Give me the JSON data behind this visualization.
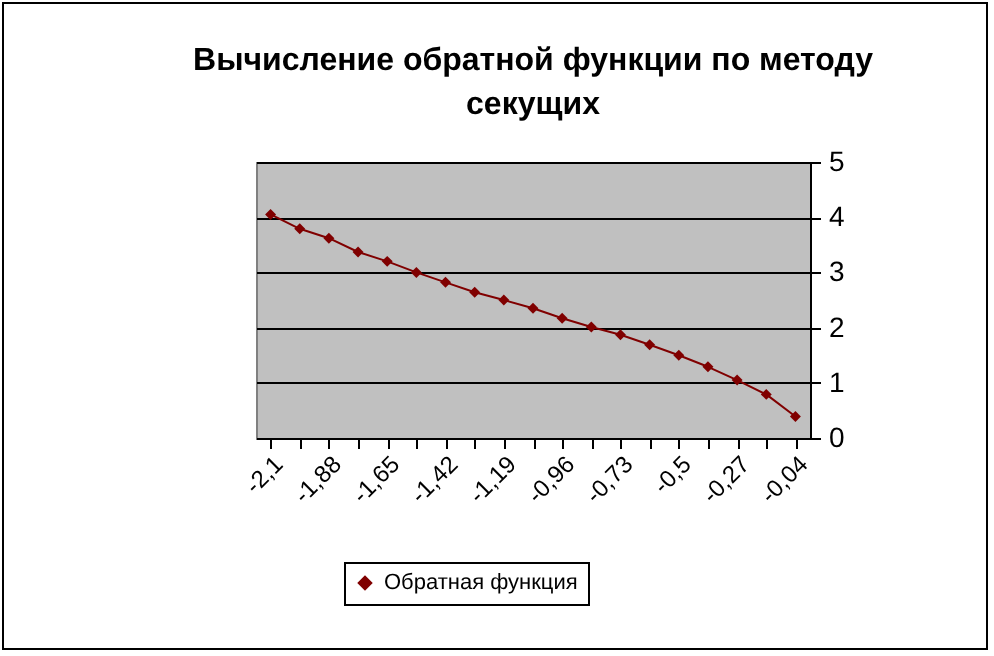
{
  "chart_data": {
    "type": "line",
    "title": "Вычисление обратной функции по методу секущих",
    "categories": [
      "-2,1",
      null,
      "-1,88",
      null,
      "-1,65",
      null,
      "-1,42",
      null,
      "-1,19",
      null,
      "-0,96",
      null,
      "-0,73",
      null,
      "-0,5",
      null,
      "-0,27",
      null,
      "-0,04"
    ],
    "series": [
      {
        "name": "Обратная функция",
        "color": "#800000",
        "values": [
          4.05,
          3.79,
          3.62,
          3.37,
          3.2,
          3.0,
          2.82,
          2.64,
          2.5,
          2.35,
          2.17,
          2.01,
          1.87,
          1.69,
          1.5,
          1.29,
          1.05,
          0.79,
          0.39
        ]
      }
    ],
    "ylim": [
      0,
      5
    ],
    "yticks": [
      0,
      1,
      2,
      3,
      4,
      5
    ],
    "grid": "y",
    "legend": "bottom",
    "marker": "diamond",
    "line_style": "solid"
  }
}
